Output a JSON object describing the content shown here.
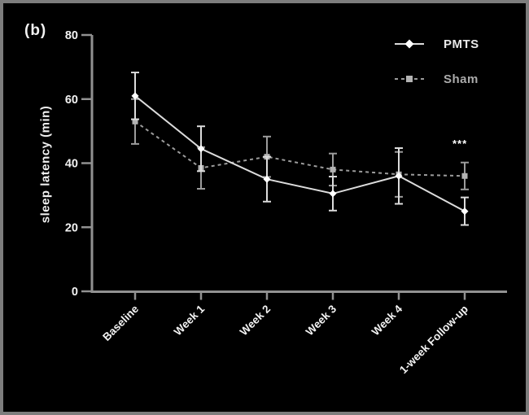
{
  "panel": {
    "label": "(b)",
    "significance": "***"
  },
  "colors": {
    "background": "#000000",
    "frame_border": "#7d7d7d",
    "axis": "#919191",
    "tick_text": "#f2f2f2",
    "pmts": "#dcdcdc",
    "pmts_marker": "#ffffff",
    "sham": "#9c9c9c",
    "sham_marker": "#b3b3b3"
  },
  "chart_data": {
    "type": "line",
    "title": "",
    "panel_label": "(b)",
    "xlabel": "",
    "ylabel": "sleep latency (min)",
    "categories": [
      "Baseline",
      "Week 1",
      "Week 2",
      "Week 3",
      "Week 4",
      "1-week Follow-up"
    ],
    "series": [
      {
        "name": "PMTS",
        "line_style": "solid",
        "marker": "diamond",
        "color": "#dcdcdc",
        "marker_color": "#ffffff",
        "values": [
          61,
          44.5,
          35,
          30.5,
          36,
          25
        ],
        "errors": [
          7.3,
          7,
          7,
          5.3,
          8.7,
          4.3
        ]
      },
      {
        "name": "Sham",
        "line_style": "dashed",
        "marker": "square",
        "color": "#9c9c9c",
        "marker_color": "#b3b3b3",
        "values": [
          53,
          38.5,
          42,
          38,
          36.5,
          36
        ],
        "errors": [
          7,
          6.5,
          6.3,
          5,
          7,
          4.2
        ]
      }
    ],
    "yticks": [
      0,
      20,
      40,
      60,
      80
    ],
    "ylim": [
      0,
      80
    ],
    "grid": false,
    "legend_position": "top-right",
    "annotation": {
      "text": "***",
      "x_category": "1-week Follow-up",
      "above_series": "Sham"
    }
  }
}
